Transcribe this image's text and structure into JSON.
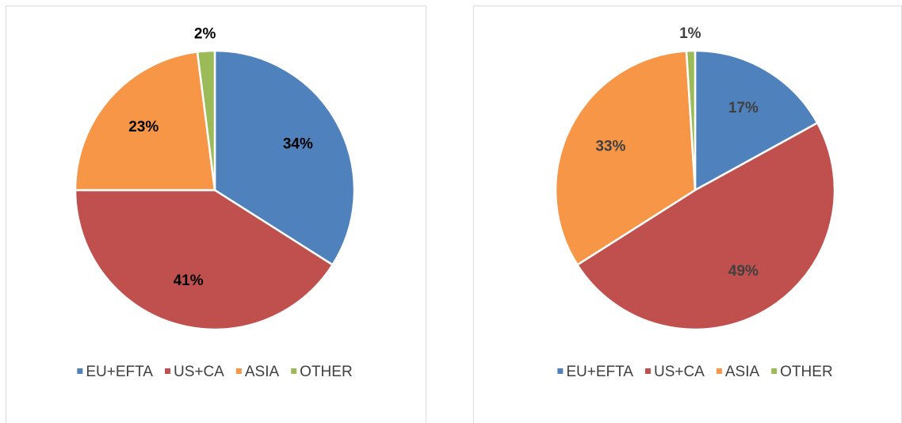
{
  "chart_data": [
    {
      "type": "pie",
      "categories": [
        "EU+EFTA",
        "US+CA",
        "ASIA",
        "OTHER"
      ],
      "values": [
        34,
        41,
        23,
        2
      ],
      "value_labels": [
        "34%",
        "41%",
        "23%",
        "2%"
      ],
      "colors": [
        "#4f81bd",
        "#c0504d",
        "#f79646",
        "#9bbb59"
      ],
      "label_color": "#000000"
    },
    {
      "type": "pie",
      "categories": [
        "EU+EFTA",
        "US+CA",
        "ASIA",
        "OTHER"
      ],
      "values": [
        17,
        49,
        33,
        1
      ],
      "value_labels": [
        "17%",
        "49%",
        "33%",
        "1%"
      ],
      "colors": [
        "#4f81bd",
        "#c0504d",
        "#f79646",
        "#9bbb59"
      ],
      "label_color": "#404040"
    }
  ]
}
